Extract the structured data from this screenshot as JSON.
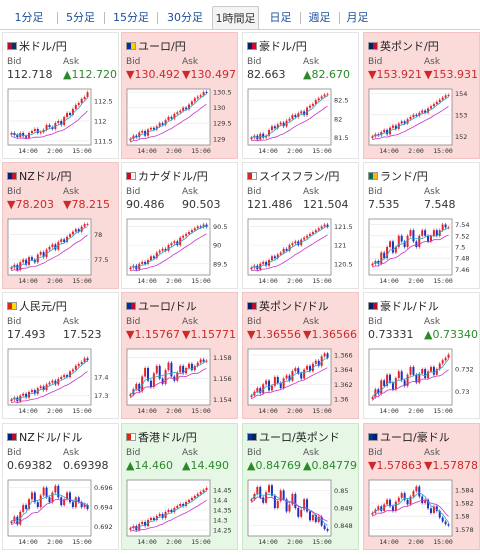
{
  "tabs": [
    {
      "label": "1分足",
      "active": false
    },
    {
      "label": "5分足",
      "active": false
    },
    {
      "label": "15分足",
      "active": false
    },
    {
      "label": "30分足",
      "active": false
    },
    {
      "label": "1時間足",
      "active": true
    },
    {
      "label": "日足",
      "active": false
    },
    {
      "label": "週足",
      "active": false
    },
    {
      "label": "月足",
      "active": false
    }
  ],
  "labels": {
    "bid": "Bid",
    "ask": "Ask"
  },
  "colors": {
    "up_bg": "#e6f7e6",
    "down_bg": "#fbdada",
    "up_text": "#2a8a2a",
    "down_text": "#cc2a2a",
    "candle_up": "#e0242a",
    "candle_down": "#1f2fbf",
    "ma_fast": "#2aa7c9",
    "ma_slow": "#c637c6"
  },
  "pairs": [
    {
      "name": "米ドル/円",
      "flags": [
        "#bf0a30",
        "#0a3161"
      ],
      "trend": "",
      "bid": "112.718",
      "ask": "▲112.720",
      "ask_dir": "up",
      "bid_dir": "",
      "chart_data": {
        "type": "candlestick",
        "x_ticks": [
          "14:00",
          "2:00",
          "15:00"
        ],
        "y_ticks": [
          "112.5",
          "112",
          "111.5"
        ],
        "ylim": [
          111.4,
          112.8
        ],
        "close": [
          111.7,
          111.65,
          111.6,
          111.7,
          111.62,
          111.58,
          111.7,
          111.75,
          111.8,
          111.7,
          111.72,
          111.78,
          111.9,
          111.85,
          111.8,
          111.95,
          112.0,
          111.9,
          112.1,
          112.2,
          112.15,
          112.3,
          112.4,
          112.45,
          112.55,
          112.6,
          112.72
        ]
      }
    },
    {
      "name": "ユーロ/円",
      "flags": [
        "#003399",
        "#ffcc00"
      ],
      "trend": "down",
      "bid": "▼130.492",
      "ask": "▼130.497",
      "ask_dir": "down",
      "bid_dir": "down",
      "chart_data": {
        "type": "candlestick",
        "x_ticks": [
          "14:00",
          "2:00",
          "15:00"
        ],
        "y_ticks": [
          "130.5",
          "130",
          "129.5",
          "129"
        ],
        "ylim": [
          128.8,
          130.6
        ],
        "close": [
          129.0,
          129.1,
          129.05,
          129.2,
          129.25,
          129.1,
          129.3,
          129.35,
          129.3,
          129.4,
          129.5,
          129.45,
          129.6,
          129.7,
          129.65,
          129.8,
          129.85,
          129.9,
          130.0,
          129.95,
          130.1,
          130.2,
          130.3,
          130.35,
          130.4,
          130.5,
          130.49
        ]
      }
    },
    {
      "name": "豪ドル/円",
      "flags": [
        "#012169",
        "#e4002b"
      ],
      "trend": "",
      "bid": "82.663",
      "ask": "▲82.670",
      "ask_dir": "up",
      "bid_dir": "",
      "chart_data": {
        "type": "candlestick",
        "x_ticks": [
          "14:00",
          "2:00",
          "15:00"
        ],
        "y_ticks": [
          "82.5",
          "82",
          "81.5"
        ],
        "ylim": [
          81.3,
          82.8
        ],
        "close": [
          81.5,
          81.55,
          81.45,
          81.6,
          81.5,
          81.55,
          81.7,
          81.8,
          81.75,
          81.85,
          81.9,
          81.8,
          81.95,
          82.0,
          82.1,
          82.05,
          82.15,
          82.2,
          82.1,
          82.3,
          82.35,
          82.4,
          82.5,
          82.55,
          82.6,
          82.65,
          82.66
        ]
      }
    },
    {
      "name": "英ポンド/円",
      "flags": [
        "#012169",
        "#c8102e"
      ],
      "trend": "down",
      "bid": "▼153.921",
      "ask": "▼153.931",
      "ask_dir": "down",
      "bid_dir": "down",
      "chart_data": {
        "type": "candlestick",
        "x_ticks": [
          "14:00",
          "2:00",
          "15:00"
        ],
        "y_ticks": [
          "154",
          "153",
          "152"
        ],
        "ylim": [
          151.6,
          154.2
        ],
        "close": [
          152.0,
          152.1,
          152.05,
          152.2,
          152.3,
          152.1,
          152.4,
          152.5,
          152.35,
          152.6,
          152.7,
          152.6,
          152.8,
          152.9,
          153.0,
          152.95,
          153.1,
          153.2,
          153.1,
          153.3,
          153.4,
          153.5,
          153.6,
          153.7,
          153.8,
          153.9,
          153.92
        ]
      }
    },
    {
      "name": "NZドル/円",
      "flags": [
        "#00247d",
        "#cc142b"
      ],
      "trend": "down",
      "bid": "▼78.203",
      "ask": "▼78.215",
      "ask_dir": "down",
      "bid_dir": "down",
      "chart_data": {
        "type": "candlestick",
        "x_ticks": [
          "14:00",
          "2:00",
          "15:00"
        ],
        "y_ticks": [
          "78",
          "77.5"
        ],
        "ylim": [
          77.2,
          78.3
        ],
        "close": [
          77.35,
          77.4,
          77.3,
          77.45,
          77.5,
          77.4,
          77.55,
          77.5,
          77.45,
          77.6,
          77.65,
          77.55,
          77.7,
          77.75,
          77.8,
          77.7,
          77.85,
          77.9,
          77.85,
          77.95,
          78.0,
          78.05,
          78.1,
          78.05,
          78.15,
          78.2,
          78.2
        ]
      }
    },
    {
      "name": "カナダドル/円",
      "flags": [
        "#d80621",
        "#ffffff"
      ],
      "trend": "",
      "bid": "90.486",
      "ask": "90.503",
      "ask_dir": "",
      "bid_dir": "",
      "chart_data": {
        "type": "candlestick",
        "x_ticks": [
          "14:00",
          "2:00",
          "15:00"
        ],
        "y_ticks": [
          "90.5",
          "90",
          "89.5"
        ],
        "ylim": [
          89.2,
          90.7
        ],
        "close": [
          89.4,
          89.45,
          89.35,
          89.5,
          89.55,
          89.5,
          89.6,
          89.7,
          89.65,
          89.8,
          89.85,
          89.9,
          89.85,
          90.0,
          90.05,
          90.1,
          90.0,
          90.2,
          90.25,
          90.3,
          90.35,
          90.4,
          90.45,
          90.5,
          90.48,
          90.55,
          90.49
        ]
      }
    },
    {
      "name": "スイスフラン/円",
      "flags": [
        "#da291c",
        "#ffffff"
      ],
      "trend": "",
      "bid": "121.486",
      "ask": "121.504",
      "ask_dir": "",
      "bid_dir": "",
      "chart_data": {
        "type": "candlestick",
        "x_ticks": [
          "14:00",
          "2:00",
          "15:00"
        ],
        "y_ticks": [
          "121.5",
          "121",
          "120.5"
        ],
        "ylim": [
          120.2,
          121.7
        ],
        "close": [
          120.4,
          120.45,
          120.35,
          120.5,
          120.55,
          120.45,
          120.6,
          120.7,
          120.65,
          120.75,
          120.8,
          120.9,
          120.85,
          121.0,
          121.05,
          121.1,
          121.0,
          121.15,
          121.2,
          121.25,
          121.3,
          121.35,
          121.4,
          121.45,
          121.5,
          121.55,
          121.49
        ]
      }
    },
    {
      "name": "ランド/円",
      "flags": [
        "#007a4d",
        "#ffb612"
      ],
      "trend": "",
      "bid": "7.535",
      "ask": "7.548",
      "ask_dir": "",
      "bid_dir": "",
      "chart_data": {
        "type": "candlestick",
        "x_ticks": [
          "14:00",
          "2:00",
          "15:00"
        ],
        "y_ticks": [
          "7.54",
          "7.52",
          "7.5",
          "7.48",
          "7.46"
        ],
        "ylim": [
          7.45,
          7.55
        ],
        "close": [
          7.47,
          7.475,
          7.47,
          7.49,
          7.48,
          7.5,
          7.51,
          7.49,
          7.5,
          7.52,
          7.51,
          7.5,
          7.52,
          7.53,
          7.51,
          7.5,
          7.52,
          7.53,
          7.52,
          7.51,
          7.52,
          7.53,
          7.52,
          7.53,
          7.54,
          7.535,
          7.535
        ]
      }
    },
    {
      "name": "人民元/円",
      "flags": [
        "#de2910",
        "#ffde00"
      ],
      "trend": "",
      "bid": "17.493",
      "ask": "17.523",
      "ask_dir": "",
      "bid_dir": "",
      "chart_data": {
        "type": "candlestick",
        "x_ticks": [
          "14:00",
          "2:00",
          "15:00"
        ],
        "y_ticks": [
          "17.4",
          "17.3"
        ],
        "ylim": [
          17.25,
          17.55
        ],
        "close": [
          17.28,
          17.29,
          17.27,
          17.3,
          17.31,
          17.29,
          17.32,
          17.33,
          17.31,
          17.34,
          17.35,
          17.33,
          17.36,
          17.37,
          17.38,
          17.36,
          17.39,
          17.4,
          17.41,
          17.4,
          17.43,
          17.44,
          17.46,
          17.47,
          17.48,
          17.5,
          17.49
        ]
      }
    },
    {
      "name": "ユーロ/ドル",
      "flags": [
        "#003399",
        "#bf0a30"
      ],
      "trend": "down",
      "bid": "▼1.15767",
      "ask": "▼1.15771",
      "ask_dir": "down",
      "bid_dir": "down",
      "chart_data": {
        "type": "candlestick",
        "x_ticks": [
          "14:00",
          "2:00",
          "15:00"
        ],
        "y_ticks": [
          "1.158",
          "1.156",
          "1.154"
        ],
        "ylim": [
          1.1535,
          1.1588
        ],
        "close": [
          1.1545,
          1.155,
          1.1555,
          1.1548,
          1.1562,
          1.157,
          1.1558,
          1.1552,
          1.1565,
          1.1572,
          1.156,
          1.1555,
          1.1568,
          1.1575,
          1.1562,
          1.1558,
          1.1566,
          1.1572,
          1.1565,
          1.157,
          1.1574,
          1.1568,
          1.1572,
          1.1575,
          1.1578,
          1.1576,
          1.1577
        ]
      }
    },
    {
      "name": "英ポンド/ドル",
      "flags": [
        "#012169",
        "#bf0a30"
      ],
      "trend": "down",
      "bid": "▼1.36556",
      "ask": "▼1.36566",
      "ask_dir": "down",
      "bid_dir": "down",
      "chart_data": {
        "type": "candlestick",
        "x_ticks": [
          "14:00",
          "2:00",
          "15:00"
        ],
        "y_ticks": [
          "1.366",
          "1.364",
          "1.362",
          "1.36"
        ],
        "ylim": [
          1.3592,
          1.3668
        ],
        "close": [
          1.3605,
          1.361,
          1.3615,
          1.3608,
          1.362,
          1.3625,
          1.3612,
          1.3618,
          1.363,
          1.3622,
          1.3615,
          1.3628,
          1.3632,
          1.3625,
          1.3638,
          1.3642,
          1.3635,
          1.3628,
          1.364,
          1.3645,
          1.3638,
          1.3648,
          1.3652,
          1.3645,
          1.3658,
          1.3662,
          1.3656
        ]
      }
    },
    {
      "name": "豪ドル/ドル",
      "flags": [
        "#012169",
        "#bf0a30"
      ],
      "trend": "",
      "bid": "0.73331",
      "ask": "▲0.73340",
      "ask_dir": "up",
      "bid_dir": "",
      "chart_data": {
        "type": "candlestick",
        "x_ticks": [
          "14:00",
          "2:00",
          "15:00"
        ],
        "y_ticks": [
          "0.732",
          "0.73"
        ],
        "ylim": [
          0.7288,
          0.7338
        ],
        "close": [
          0.7295,
          0.7302,
          0.7298,
          0.731,
          0.7305,
          0.7315,
          0.7308,
          0.7302,
          0.7312,
          0.7318,
          0.731,
          0.7305,
          0.7315,
          0.7322,
          0.7315,
          0.7308,
          0.7316,
          0.732,
          0.7312,
          0.7318,
          0.7322,
          0.7315,
          0.732,
          0.7325,
          0.7328,
          0.733,
          0.7333
        ]
      }
    },
    {
      "name": "NZドル/ドル",
      "flags": [
        "#00247d",
        "#bf0a30"
      ],
      "trend": "",
      "bid": "0.69382",
      "ask": "0.69398",
      "ask_dir": "",
      "bid_dir": "",
      "chart_data": {
        "type": "candlestick",
        "x_ticks": [
          "14:00",
          "2:00",
          "15:00"
        ],
        "y_ticks": [
          "0.696",
          "0.694",
          "0.692"
        ],
        "ylim": [
          0.691,
          0.6968
        ],
        "close": [
          0.6925,
          0.693,
          0.6922,
          0.6935,
          0.6942,
          0.6938,
          0.6948,
          0.6955,
          0.6945,
          0.694,
          0.6952,
          0.696,
          0.695,
          0.6945,
          0.6955,
          0.6962,
          0.695,
          0.6942,
          0.6948,
          0.6955,
          0.6945,
          0.694,
          0.695,
          0.6945,
          0.694,
          0.6942,
          0.6938
        ]
      }
    },
    {
      "name": "香港ドル/円",
      "flags": [
        "#de2910",
        "#ffffff"
      ],
      "trend": "up",
      "bid": "▲14.460",
      "ask": "▲14.490",
      "ask_dir": "up",
      "bid_dir": "up",
      "chart_data": {
        "type": "candlestick",
        "x_ticks": [
          "14:00",
          "2:00",
          "15:00"
        ],
        "y_ticks": [
          "14.45",
          "14.4",
          "14.35",
          "14.3",
          "14.25"
        ],
        "ylim": [
          14.22,
          14.5
        ],
        "close": [
          14.26,
          14.27,
          14.25,
          14.28,
          14.29,
          14.27,
          14.3,
          14.31,
          14.3,
          14.32,
          14.33,
          14.31,
          14.34,
          14.35,
          14.34,
          14.36,
          14.37,
          14.38,
          14.37,
          14.39,
          14.4,
          14.41,
          14.42,
          14.43,
          14.44,
          14.45,
          14.46
        ]
      }
    },
    {
      "name": "ユーロ/英ポンド",
      "flags": [
        "#003399",
        "#012169"
      ],
      "trend": "up",
      "bid": "▲0.84769",
      "ask": "▲0.84779",
      "ask_dir": "up",
      "bid_dir": "up",
      "chart_data": {
        "type": "candlestick",
        "x_ticks": [
          "14:00",
          "2:00",
          "15:00"
        ],
        "y_ticks": [
          "0.85",
          "0.849",
          "0.848"
        ],
        "ylim": [
          0.8474,
          0.8506
        ],
        "close": [
          0.8495,
          0.8498,
          0.8502,
          0.8496,
          0.8493,
          0.8499,
          0.8503,
          0.8497,
          0.849,
          0.8494,
          0.85,
          0.8495,
          0.8488,
          0.8492,
          0.8498,
          0.849,
          0.8485,
          0.8489,
          0.8495,
          0.8488,
          0.8483,
          0.8486,
          0.8482,
          0.8485,
          0.848,
          0.8478,
          0.8477
        ]
      }
    },
    {
      "name": "ユーロ/豪ドル",
      "flags": [
        "#003399",
        "#012169"
      ],
      "trend": "down",
      "bid": "▼1.57863",
      "ask": "▼1.57878",
      "ask_dir": "down",
      "bid_dir": "down",
      "chart_data": {
        "type": "candlestick",
        "x_ticks": [
          "14:00",
          "2:00",
          "15:00"
        ],
        "y_ticks": [
          "1.584",
          "1.582",
          "1.58",
          "1.578"
        ],
        "ylim": [
          1.577,
          1.5855
        ],
        "close": [
          1.5805,
          1.581,
          1.5815,
          1.5808,
          1.5818,
          1.5825,
          1.5815,
          1.5808,
          1.5822,
          1.5828,
          1.5835,
          1.5825,
          1.5818,
          1.583,
          1.5838,
          1.5845,
          1.583,
          1.582,
          1.5825,
          1.5812,
          1.5805,
          1.5815,
          1.5808,
          1.5798,
          1.5792,
          1.5788,
          1.5786
        ]
      }
    }
  ]
}
